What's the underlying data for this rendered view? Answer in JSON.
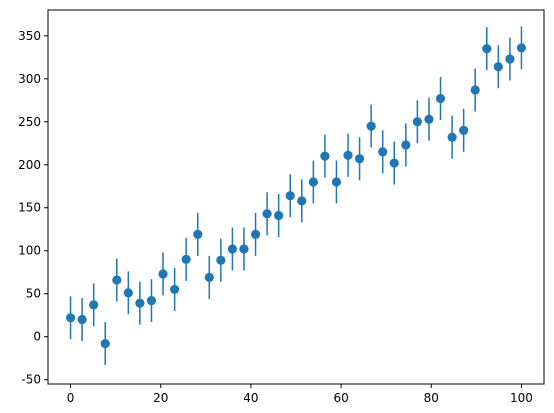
{
  "chart_data": {
    "type": "scatter",
    "title": "",
    "xlabel": "",
    "ylabel": "",
    "xlim": [
      -5,
      105
    ],
    "ylim": [
      -55,
      380
    ],
    "xticks": [
      0,
      20,
      40,
      60,
      80,
      100
    ],
    "yticks": [
      -50,
      0,
      50,
      100,
      150,
      200,
      250,
      300,
      350
    ],
    "grid": false,
    "legend": false,
    "color": "#1f77b4",
    "error_bar": 25,
    "series": [
      {
        "points": [
          {
            "x": 0.0,
            "y": 22
          },
          {
            "x": 2.56,
            "y": 20
          },
          {
            "x": 5.13,
            "y": 37
          },
          {
            "x": 7.69,
            "y": -8
          },
          {
            "x": 10.26,
            "y": 66
          },
          {
            "x": 12.82,
            "y": 51
          },
          {
            "x": 15.38,
            "y": 39
          },
          {
            "x": 17.95,
            "y": 42
          },
          {
            "x": 20.51,
            "y": 73
          },
          {
            "x": 23.08,
            "y": 55
          },
          {
            "x": 25.64,
            "y": 90
          },
          {
            "x": 28.21,
            "y": 119
          },
          {
            "x": 30.77,
            "y": 69
          },
          {
            "x": 33.33,
            "y": 89
          },
          {
            "x": 35.9,
            "y": 102
          },
          {
            "x": 38.46,
            "y": 102
          },
          {
            "x": 41.03,
            "y": 119
          },
          {
            "x": 43.59,
            "y": 143
          },
          {
            "x": 46.15,
            "y": 141
          },
          {
            "x": 48.72,
            "y": 164
          },
          {
            "x": 51.28,
            "y": 158
          },
          {
            "x": 53.85,
            "y": 180
          },
          {
            "x": 56.41,
            "y": 210
          },
          {
            "x": 58.97,
            "y": 180
          },
          {
            "x": 61.54,
            "y": 211
          },
          {
            "x": 64.1,
            "y": 207
          },
          {
            "x": 66.67,
            "y": 245
          },
          {
            "x": 69.23,
            "y": 215
          },
          {
            "x": 71.79,
            "y": 202
          },
          {
            "x": 74.36,
            "y": 223
          },
          {
            "x": 76.92,
            "y": 250
          },
          {
            "x": 79.49,
            "y": 253
          },
          {
            "x": 82.05,
            "y": 277
          },
          {
            "x": 84.62,
            "y": 232
          },
          {
            "x": 87.18,
            "y": 240
          },
          {
            "x": 89.74,
            "y": 287
          },
          {
            "x": 92.31,
            "y": 335
          },
          {
            "x": 94.87,
            "y": 314
          },
          {
            "x": 97.44,
            "y": 323
          },
          {
            "x": 100.0,
            "y": 336
          }
        ]
      }
    ]
  }
}
